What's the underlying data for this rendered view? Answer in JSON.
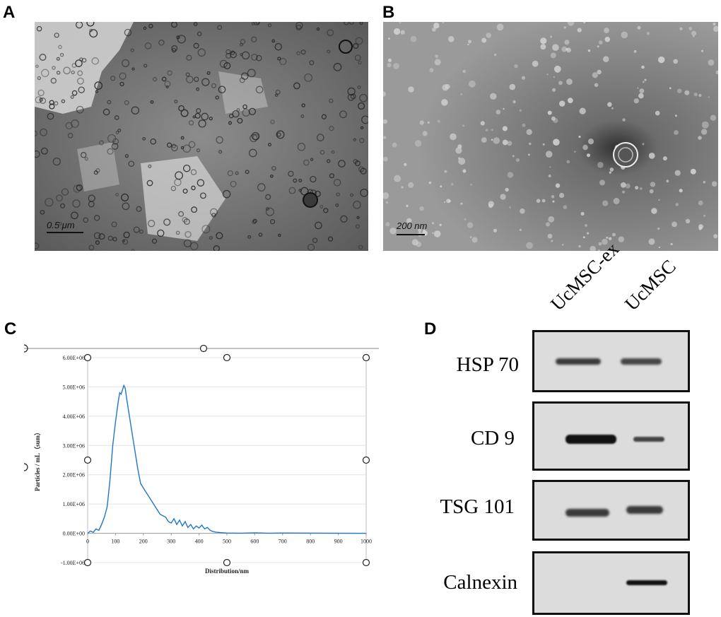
{
  "panels": {
    "A": {
      "letter": "A",
      "scale_label": "0.5 μm"
    },
    "B": {
      "letter": "B",
      "scale_label": "200 nm"
    },
    "C": {
      "letter": "C"
    },
    "D": {
      "letter": "D"
    }
  },
  "chart_data": {
    "type": "line",
    "title": "",
    "xlabel": "Distribution/nm",
    "ylabel": "Particles / mL（sum）",
    "xlim": [
      0,
      1000
    ],
    "ylim": [
      -1000000,
      6000000
    ],
    "x_ticks": [
      "0",
      "100",
      "200",
      "300",
      "400",
      "500",
      "600",
      "700",
      "800",
      "900",
      "1000"
    ],
    "y_ticks": [
      "6.00E+06",
      "5.00E+06",
      "4.00E+06",
      "3.00E+06",
      "2.00E+06",
      "1.00E+06",
      "0.00E+00",
      "-1.00E+06"
    ],
    "series_color": "#1f77c8",
    "x": [
      0,
      10,
      20,
      30,
      40,
      50,
      60,
      70,
      80,
      90,
      100,
      110,
      115,
      120,
      125,
      130,
      135,
      140,
      150,
      160,
      170,
      180,
      190,
      200,
      210,
      220,
      230,
      240,
      250,
      260,
      270,
      280,
      290,
      300,
      310,
      320,
      330,
      340,
      350,
      360,
      370,
      380,
      390,
      400,
      410,
      420,
      430,
      440,
      450,
      460,
      480,
      500,
      550,
      600,
      650,
      700,
      1000
    ],
    "y": [
      0,
      80000,
      30000,
      150000,
      100000,
      300000,
      550000,
      900000,
      1800000,
      3000000,
      3800000,
      4500000,
      4800000,
      4750000,
      4900000,
      5050000,
      4950000,
      4600000,
      4000000,
      3400000,
      2800000,
      2200000,
      1700000,
      1550000,
      1400000,
      1250000,
      1100000,
      950000,
      800000,
      650000,
      600000,
      550000,
      400000,
      350000,
      500000,
      300000,
      450000,
      250000,
      400000,
      200000,
      300000,
      150000,
      250000,
      180000,
      280000,
      150000,
      200000,
      100000,
      60000,
      40000,
      20000,
      10000,
      5000,
      15000,
      5000,
      10000,
      0
    ]
  },
  "western_blot": {
    "lanes": [
      "UcMSC-ex",
      "UcMSC"
    ],
    "rows": [
      {
        "label": "HSP 70"
      },
      {
        "label": "CD 9"
      },
      {
        "label": "TSG 101"
      },
      {
        "label": "Calnexin"
      }
    ]
  }
}
